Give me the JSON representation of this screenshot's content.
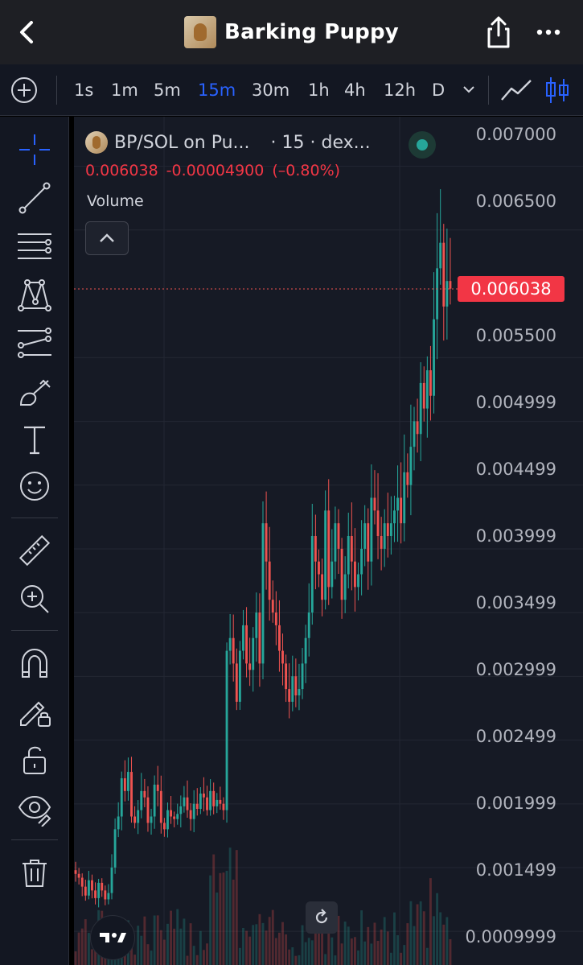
{
  "header": {
    "title": "Barking Puppy",
    "back_icon": "chevron-left-icon",
    "share_icon": "share-icon",
    "more_icon": "more-horizontal-icon"
  },
  "timeframes": {
    "items": [
      "1s",
      "1m",
      "5m",
      "15m",
      "30m",
      "1h",
      "4h",
      "12h",
      "D"
    ],
    "active": "15m"
  },
  "legend": {
    "symbol": "BP/SOL on Pu...",
    "meta": "· 15 · dex...",
    "last": "0.006038",
    "change": "-0.00004900",
    "change_pct": "(–0.80%)",
    "volume_label": "Volume"
  },
  "price_axis": {
    "labels": [
      "0.007000",
      "0.006500",
      "0.005500",
      "0.004999",
      "0.004499",
      "0.003999",
      "0.003499",
      "0.002999",
      "0.002499",
      "0.001999",
      "0.001499",
      "0.0009999"
    ],
    "last_price": "0.006038"
  },
  "left_tools": [
    "crosshair-icon",
    "trend-line-icon",
    "fib-retracement-icon",
    "pattern-icon",
    "prediction-icon",
    "brush-icon",
    "text-icon",
    "emoji-icon",
    "ruler-icon",
    "zoom-in-icon",
    "magnet-icon",
    "lock-drawing-icon",
    "unlock-icon",
    "eye-icon",
    "trash-icon"
  ],
  "colors": {
    "up": "#26a69a",
    "down": "#ef5350",
    "accent": "#2962ff",
    "background": "#161a25"
  },
  "chart_data": {
    "type": "candlestick",
    "timeframe": "15",
    "y_axis_ticks": [
      0.0009999,
      0.001499,
      0.001999,
      0.002499,
      0.002999,
      0.003499,
      0.003999,
      0.004499,
      0.004999,
      0.0055,
      0.0065,
      0.007
    ],
    "ylim": [
      0.00095,
      0.00725
    ],
    "last_price": 0.006038,
    "close_series": [
      0.00145,
      0.00142,
      0.00135,
      0.00128,
      0.0014,
      0.00132,
      0.00126,
      0.00138,
      0.00132,
      0.00125,
      0.0013,
      0.0015,
      0.0018,
      0.0019,
      0.0022,
      0.0021,
      0.00225,
      0.0019,
      0.00185,
      0.00195,
      0.0021,
      0.00205,
      0.00185,
      0.0019,
      0.00215,
      0.0021,
      0.00185,
      0.0018,
      0.00195,
      0.0019,
      0.00188,
      0.00192,
      0.00198,
      0.00205,
      0.00195,
      0.00188,
      0.002,
      0.00196,
      0.00208,
      0.00205,
      0.00195,
      0.0021,
      0.00198,
      0.00203,
      0.002,
      0.00195,
      0.0032,
      0.0033,
      0.0031,
      0.0028,
      0.0032,
      0.0034,
      0.0031,
      0.00305,
      0.0033,
      0.0035,
      0.0031,
      0.0042,
      0.0039,
      0.0036,
      0.0035,
      0.0034,
      0.0032,
      0.0031,
      0.0029,
      0.0028,
      0.003,
      0.00285,
      0.0029,
      0.0031,
      0.0033,
      0.0035,
      0.0041,
      0.0039,
      0.0038,
      0.0036,
      0.0043,
      0.0037,
      0.0039,
      0.0042,
      0.004,
      0.0036,
      0.0038,
      0.0041,
      0.0039,
      0.0037,
      0.0038,
      0.004,
      0.0042,
      0.0039,
      0.0044,
      0.0043,
      0.0041,
      0.004,
      0.0042,
      0.0041,
      0.0042,
      0.0043,
      0.0044,
      0.0042,
      0.0046,
      0.0045,
      0.0048,
      0.005,
      0.0049,
      0.0053,
      0.0051,
      0.0054,
      0.0052,
      0.0058,
      0.0062,
      0.0064,
      0.0059,
      0.0061,
      0.00604
    ]
  }
}
